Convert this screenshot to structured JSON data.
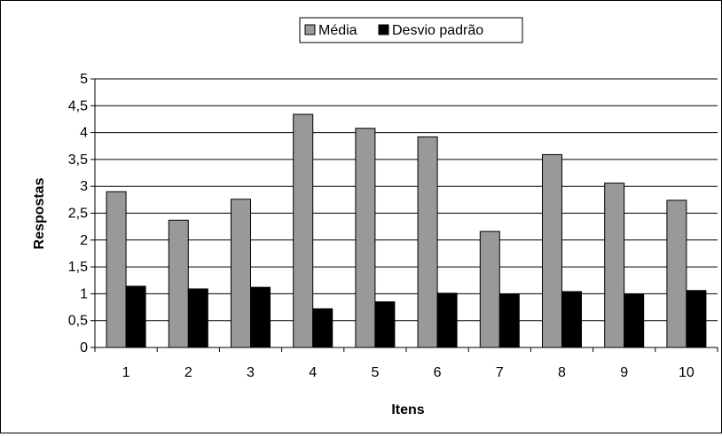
{
  "chart_data": {
    "type": "bar",
    "categories": [
      "1",
      "2",
      "3",
      "4",
      "5",
      "6",
      "7",
      "8",
      "9",
      "10"
    ],
    "series": [
      {
        "name": "Média",
        "color": "#999999",
        "values": [
          2.9,
          2.37,
          2.76,
          4.34,
          4.08,
          3.92,
          2.16,
          3.59,
          3.06,
          2.74
        ]
      },
      {
        "name": "Desvio padrão",
        "color": "#000000",
        "values": [
          1.14,
          1.09,
          1.12,
          0.72,
          0.85,
          1.01,
          0.99,
          1.04,
          0.99,
          1.06
        ]
      }
    ],
    "title": "",
    "xlabel": "Itens",
    "ylabel": "Respostas",
    "ylim": [
      0,
      5
    ],
    "yticks": [
      "0",
      "0,5",
      "1",
      "1,5",
      "2",
      "2,5",
      "3",
      "3,5",
      "4",
      "4,5",
      "5"
    ],
    "grid": "horizontal",
    "legend_position": "top-center"
  }
}
